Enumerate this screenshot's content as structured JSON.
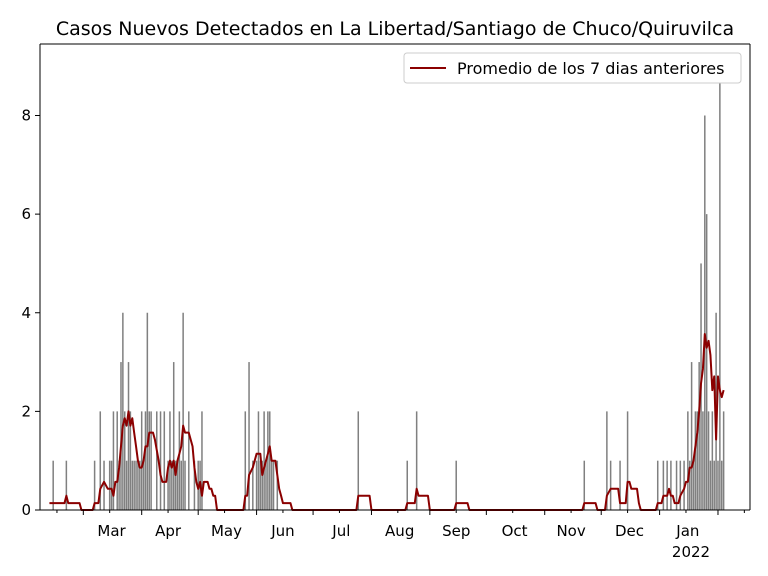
{
  "chart_data": {
    "type": "bar",
    "title": "Casos Nuevos Detectados en La Libertad/Santiago de Chuco/Quiruvilca",
    "xlabel": "",
    "ylabel": "",
    "x_tick_labels": [
      "Mar",
      "Apr",
      "May",
      "Jun",
      "Jul",
      "Aug",
      "Sep",
      "Oct",
      "Nov",
      "Dec",
      "Jan"
    ],
    "x_year_label": "2022",
    "y_ticks": [
      0,
      2,
      4,
      6,
      8
    ],
    "ylim": [
      0,
      9.45
    ],
    "xlim": [
      "2021-02-06",
      "2022-02-18"
    ],
    "grid": false,
    "legend": {
      "position": "top-right",
      "entries": [
        "Promedio de los 7 dias anteriores"
      ]
    },
    "colors": {
      "bars": "#808080",
      "line": "#8b0000"
    },
    "series": [
      {
        "kind": "bar",
        "points": [
          [
            "2021-02-13",
            1
          ],
          [
            "2021-02-20",
            1
          ],
          [
            "2021-03-07",
            1
          ],
          [
            "2021-03-10",
            2
          ],
          [
            "2021-03-12",
            1
          ],
          [
            "2021-03-15",
            1
          ],
          [
            "2021-03-16",
            1
          ],
          [
            "2021-03-17",
            2
          ],
          [
            "2021-03-19",
            2
          ],
          [
            "2021-03-20",
            1
          ],
          [
            "2021-03-21",
            3
          ],
          [
            "2021-03-22",
            4
          ],
          [
            "2021-03-23",
            2
          ],
          [
            "2021-03-24",
            1
          ],
          [
            "2021-03-25",
            3
          ],
          [
            "2021-03-26",
            2
          ],
          [
            "2021-03-27",
            1
          ],
          [
            "2021-03-28",
            1
          ],
          [
            "2021-03-29",
            1
          ],
          [
            "2021-03-30",
            1
          ],
          [
            "2021-03-31",
            1
          ],
          [
            "2021-04-01",
            2
          ],
          [
            "2021-04-02",
            1
          ],
          [
            "2021-04-03",
            2
          ],
          [
            "2021-04-04",
            4
          ],
          [
            "2021-04-05",
            2
          ],
          [
            "2021-04-06",
            2
          ],
          [
            "2021-04-09",
            2
          ],
          [
            "2021-04-11",
            2
          ],
          [
            "2021-04-13",
            2
          ],
          [
            "2021-04-15",
            1
          ],
          [
            "2021-04-16",
            2
          ],
          [
            "2021-04-17",
            1
          ],
          [
            "2021-04-18",
            3
          ],
          [
            "2021-04-19",
            1
          ],
          [
            "2021-04-20",
            1
          ],
          [
            "2021-04-21",
            2
          ],
          [
            "2021-04-22",
            1
          ],
          [
            "2021-04-23",
            4
          ],
          [
            "2021-04-24",
            1
          ],
          [
            "2021-04-26",
            2
          ],
          [
            "2021-04-29",
            1
          ],
          [
            "2021-05-01",
            1
          ],
          [
            "2021-05-02",
            1
          ],
          [
            "2021-05-03",
            2
          ],
          [
            "2021-05-26",
            2
          ],
          [
            "2021-05-28",
            3
          ],
          [
            "2021-05-30",
            1
          ],
          [
            "2021-06-01",
            1
          ],
          [
            "2021-06-02",
            2
          ],
          [
            "2021-06-03",
            1
          ],
          [
            "2021-06-04",
            1
          ],
          [
            "2021-06-05",
            2
          ],
          [
            "2021-06-06",
            1
          ],
          [
            "2021-06-07",
            2
          ],
          [
            "2021-06-08",
            2
          ],
          [
            "2021-06-09",
            1
          ],
          [
            "2021-06-10",
            1
          ],
          [
            "2021-06-12",
            1
          ],
          [
            "2021-07-25",
            2
          ],
          [
            "2021-08-20",
            1
          ],
          [
            "2021-08-25",
            2
          ],
          [
            "2021-09-15",
            1
          ],
          [
            "2021-11-22",
            1
          ],
          [
            "2021-12-04",
            2
          ],
          [
            "2021-12-06",
            1
          ],
          [
            "2021-12-11",
            1
          ],
          [
            "2021-12-15",
            2
          ],
          [
            "2021-12-31",
            1
          ],
          [
            "2022-01-03",
            1
          ],
          [
            "2022-01-05",
            1
          ],
          [
            "2022-01-07",
            1
          ],
          [
            "2022-01-10",
            1
          ],
          [
            "2022-01-12",
            1
          ],
          [
            "2022-01-14",
            1
          ],
          [
            "2022-01-16",
            2
          ],
          [
            "2022-01-17",
            1
          ],
          [
            "2022-01-18",
            3
          ],
          [
            "2022-01-19",
            1
          ],
          [
            "2022-01-20",
            2
          ],
          [
            "2022-01-21",
            2
          ],
          [
            "2022-01-22",
            3
          ],
          [
            "2022-01-23",
            5
          ],
          [
            "2022-01-24",
            2
          ],
          [
            "2022-01-25",
            8
          ],
          [
            "2022-01-26",
            6
          ],
          [
            "2022-01-27",
            2
          ],
          [
            "2022-01-28",
            1
          ],
          [
            "2022-01-29",
            2
          ],
          [
            "2022-01-30",
            1
          ],
          [
            "2022-01-31",
            4
          ],
          [
            "2022-02-01",
            1
          ],
          [
            "2022-02-02",
            9
          ],
          [
            "2022-02-03",
            1
          ],
          [
            "2022-02-04",
            2
          ]
        ]
      },
      {
        "kind": "line",
        "name": "Promedio de los 7 dias anteriores",
        "points": [
          [
            "2021-02-11",
            0.14
          ],
          [
            "2021-02-19",
            0.14
          ],
          [
            "2021-02-20",
            0.29
          ],
          [
            "2021-02-21",
            0.14
          ],
          [
            "2021-02-27",
            0.14
          ],
          [
            "2021-02-28",
            0
          ],
          [
            "2021-03-06",
            0
          ],
          [
            "2021-03-07",
            0.14
          ],
          [
            "2021-03-09",
            0.14
          ],
          [
            "2021-03-10",
            0.43
          ],
          [
            "2021-03-12",
            0.57
          ],
          [
            "2021-03-14",
            0.43
          ],
          [
            "2021-03-16",
            0.43
          ],
          [
            "2021-03-17",
            0.29
          ],
          [
            "2021-03-18",
            0.57
          ],
          [
            "2021-03-19",
            0.57
          ],
          [
            "2021-03-20",
            0.86
          ],
          [
            "2021-03-21",
            1.29
          ],
          [
            "2021-03-22",
            1.71
          ],
          [
            "2021-03-23",
            1.86
          ],
          [
            "2021-03-24",
            1.71
          ],
          [
            "2021-03-25",
            2.0
          ],
          [
            "2021-03-26",
            1.71
          ],
          [
            "2021-03-27",
            1.86
          ],
          [
            "2021-03-28",
            1.57
          ],
          [
            "2021-03-29",
            1.29
          ],
          [
            "2021-03-30",
            1.0
          ],
          [
            "2021-03-31",
            0.86
          ],
          [
            "2021-04-01",
            0.86
          ],
          [
            "2021-04-02",
            1.0
          ],
          [
            "2021-04-03",
            1.29
          ],
          [
            "2021-04-04",
            1.29
          ],
          [
            "2021-04-05",
            1.57
          ],
          [
            "2021-04-07",
            1.57
          ],
          [
            "2021-04-08",
            1.43
          ],
          [
            "2021-04-10",
            1.0
          ],
          [
            "2021-04-11",
            0.71
          ],
          [
            "2021-04-12",
            0.57
          ],
          [
            "2021-04-14",
            0.57
          ],
          [
            "2021-04-15",
            0.86
          ],
          [
            "2021-04-16",
            1.0
          ],
          [
            "2021-04-17",
            0.86
          ],
          [
            "2021-04-18",
            1.0
          ],
          [
            "2021-04-19",
            0.71
          ],
          [
            "2021-04-20",
            1.0
          ],
          [
            "2021-04-21",
            1.14
          ],
          [
            "2021-04-22",
            1.29
          ],
          [
            "2021-04-23",
            1.71
          ],
          [
            "2021-04-24",
            1.57
          ],
          [
            "2021-04-26",
            1.57
          ],
          [
            "2021-04-27",
            1.43
          ],
          [
            "2021-04-28",
            1.29
          ],
          [
            "2021-04-29",
            0.86
          ],
          [
            "2021-04-30",
            0.57
          ],
          [
            "2021-05-01",
            0.43
          ],
          [
            "2021-05-02",
            0.57
          ],
          [
            "2021-05-03",
            0.29
          ],
          [
            "2021-05-04",
            0.57
          ],
          [
            "2021-05-06",
            0.57
          ],
          [
            "2021-05-07",
            0.43
          ],
          [
            "2021-05-08",
            0.43
          ],
          [
            "2021-05-09",
            0.29
          ],
          [
            "2021-05-10",
            0.29
          ],
          [
            "2021-05-11",
            0
          ],
          [
            "2021-05-25",
            0
          ],
          [
            "2021-05-26",
            0.29
          ],
          [
            "2021-05-27",
            0.29
          ],
          [
            "2021-05-28",
            0.71
          ],
          [
            "2021-05-30",
            0.86
          ],
          [
            "2021-05-31",
            1.0
          ],
          [
            "2021-06-01",
            1.14
          ],
          [
            "2021-06-03",
            1.14
          ],
          [
            "2021-06-04",
            0.71
          ],
          [
            "2021-06-05",
            0.86
          ],
          [
            "2021-06-06",
            1.0
          ],
          [
            "2021-06-07",
            1.14
          ],
          [
            "2021-06-08",
            1.29
          ],
          [
            "2021-06-09",
            1.0
          ],
          [
            "2021-06-11",
            1.0
          ],
          [
            "2021-06-12",
            0.71
          ],
          [
            "2021-06-13",
            0.43
          ],
          [
            "2021-06-14",
            0.29
          ],
          [
            "2021-06-15",
            0.14
          ],
          [
            "2021-06-19",
            0.14
          ],
          [
            "2021-06-20",
            0
          ],
          [
            "2021-07-24",
            0
          ],
          [
            "2021-07-25",
            0.29
          ],
          [
            "2021-07-31",
            0.29
          ],
          [
            "2021-08-01",
            0
          ],
          [
            "2021-08-19",
            0
          ],
          [
            "2021-08-20",
            0.14
          ],
          [
            "2021-08-24",
            0.14
          ],
          [
            "2021-08-25",
            0.43
          ],
          [
            "2021-08-26",
            0.29
          ],
          [
            "2021-08-31",
            0.29
          ],
          [
            "2021-09-01",
            0
          ],
          [
            "2021-09-14",
            0
          ],
          [
            "2021-09-15",
            0.14
          ],
          [
            "2021-09-21",
            0.14
          ],
          [
            "2021-09-22",
            0
          ],
          [
            "2021-11-21",
            0
          ],
          [
            "2021-11-22",
            0.14
          ],
          [
            "2021-11-28",
            0.14
          ],
          [
            "2021-11-29",
            0
          ],
          [
            "2021-12-03",
            0
          ],
          [
            "2021-12-04",
            0.29
          ],
          [
            "2021-12-06",
            0.43
          ],
          [
            "2021-12-10",
            0.43
          ],
          [
            "2021-12-11",
            0.14
          ],
          [
            "2021-12-14",
            0.14
          ],
          [
            "2021-12-15",
            0.57
          ],
          [
            "2021-12-16",
            0.57
          ],
          [
            "2021-12-17",
            0.43
          ],
          [
            "2021-12-20",
            0.43
          ],
          [
            "2021-12-21",
            0.14
          ],
          [
            "2021-12-22",
            0
          ],
          [
            "2021-12-30",
            0
          ],
          [
            "2021-12-31",
            0.14
          ],
          [
            "2022-01-02",
            0.14
          ],
          [
            "2022-01-03",
            0.29
          ],
          [
            "2022-01-05",
            0.29
          ],
          [
            "2022-01-06",
            0.43
          ],
          [
            "2022-01-07",
            0.29
          ],
          [
            "2022-01-08",
            0.29
          ],
          [
            "2022-01-09",
            0.14
          ],
          [
            "2022-01-11",
            0.14
          ],
          [
            "2022-01-12",
            0.29
          ],
          [
            "2022-01-14",
            0.43
          ],
          [
            "2022-01-15",
            0.57
          ],
          [
            "2022-01-16",
            0.57
          ],
          [
            "2022-01-17",
            0.86
          ],
          [
            "2022-01-18",
            0.86
          ],
          [
            "2022-01-19",
            1.0
          ],
          [
            "2022-01-20",
            1.29
          ],
          [
            "2022-01-21",
            1.57
          ],
          [
            "2022-01-22",
            2.0
          ],
          [
            "2022-01-23",
            2.57
          ],
          [
            "2022-01-24",
            2.86
          ],
          [
            "2022-01-25",
            3.57
          ],
          [
            "2022-01-26",
            3.29
          ],
          [
            "2022-01-27",
            3.43
          ],
          [
            "2022-01-28",
            3.14
          ],
          [
            "2022-01-29",
            2.43
          ],
          [
            "2022-01-30",
            2.71
          ],
          [
            "2022-01-31",
            1.43
          ],
          [
            "2022-02-01",
            2.71
          ],
          [
            "2022-02-02",
            2.43
          ],
          [
            "2022-02-03",
            2.29
          ],
          [
            "2022-02-04",
            2.43
          ]
        ]
      }
    ]
  }
}
